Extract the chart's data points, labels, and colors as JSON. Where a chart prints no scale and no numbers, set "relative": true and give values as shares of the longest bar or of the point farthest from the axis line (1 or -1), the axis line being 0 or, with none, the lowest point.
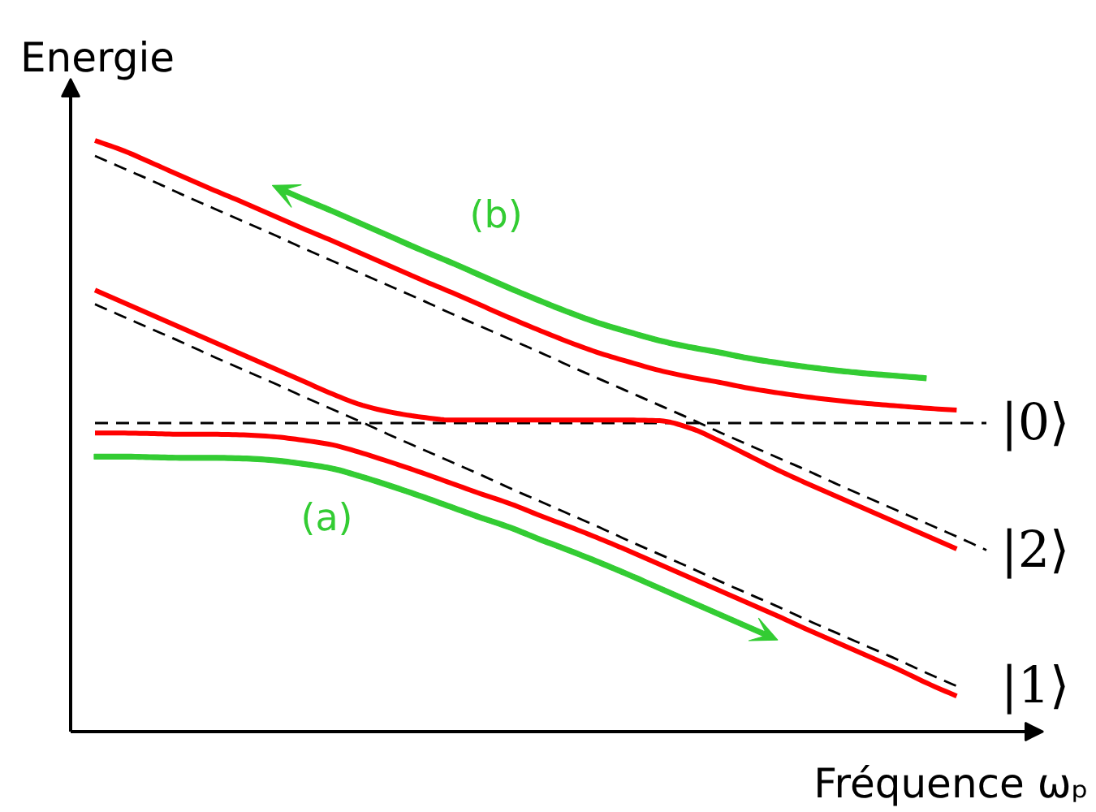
{
  "chart_data": {
    "type": "line",
    "relative": true,
    "xlabel": "Fréquence ωₚ",
    "ylabel": "Energie",
    "annotations": [
      "(b)",
      "(a)"
    ],
    "categories": [
      null,
      null,
      null,
      null,
      null,
      null,
      null,
      null,
      null,
      null,
      null,
      null,
      null,
      null,
      null,
      null,
      null,
      null,
      null,
      null,
      null,
      null,
      null,
      null,
      null,
      null,
      null,
      null,
      null,
      null,
      null
    ],
    "series": [
      {
        "name": "|0⟩",
        "color": "#000000",
        "line_style": "dashed",
        "values": [
          0.522,
          0.522,
          0.522,
          0.522,
          0.522,
          0.522,
          0.522,
          0.522,
          0.522,
          0.522,
          0.522,
          0.522,
          0.522,
          0.522,
          0.522,
          0.522,
          0.522,
          0.522,
          0.522,
          0.522,
          0.522,
          0.522,
          0.522,
          0.522,
          0.522,
          0.522,
          0.522,
          0.522,
          0.522,
          0.522,
          0.522
        ]
      },
      {
        "name": "|2⟩",
        "color": "#000000",
        "line_style": "dashed",
        "values": [
          0.974,
          0.952,
          0.93,
          0.907,
          0.885,
          0.863,
          0.841,
          0.818,
          0.796,
          0.774,
          0.752,
          0.73,
          0.707,
          0.685,
          0.663,
          0.641,
          0.618,
          0.596,
          0.574,
          0.552,
          0.53,
          0.507,
          0.485,
          0.463,
          0.441,
          0.418,
          0.396,
          0.374,
          0.352,
          0.33,
          0.307
        ]
      },
      {
        "name": "|1⟩",
        "color": "#000000",
        "line_style": "dashed",
        "values": [
          0.723,
          0.701,
          0.679,
          0.657,
          0.634,
          0.612,
          0.59,
          0.567,
          0.545,
          0.523,
          0.5,
          0.478,
          0.456,
          0.434,
          0.411,
          0.389,
          0.367,
          0.345,
          0.322,
          0.3,
          0.278,
          0.255,
          0.233,
          0.211,
          0.188,
          0.166,
          0.144,
          0.122,
          0.099,
          0.077,
          null
        ]
      },
      {
        "color": "#ff0000",
        "line_style": "solid",
        "values": [
          1.0,
          0.982,
          0.96,
          0.938,
          0.916,
          0.895,
          0.873,
          0.851,
          0.83,
          0.808,
          0.786,
          0.764,
          0.743,
          0.721,
          0.699,
          0.678,
          0.658,
          0.64,
          0.625,
          0.611,
          0.6,
          0.591,
          0.581,
          0.573,
          0.566,
          0.56,
          0.555,
          0.551,
          0.547,
          0.544,
          null
        ]
      },
      {
        "color": "#ff0000",
        "line_style": "solid",
        "values": [
          0.747,
          0.725,
          0.703,
          0.681,
          0.659,
          0.637,
          0.615,
          0.593,
          0.571,
          0.552,
          0.54,
          0.532,
          0.527,
          0.527,
          0.527,
          0.527,
          0.527,
          0.527,
          0.527,
          0.526,
          0.514,
          0.492,
          0.467,
          0.442,
          0.419,
          0.397,
          0.375,
          0.353,
          0.331,
          0.309,
          null
        ]
      },
      {
        "color": "#ff0000",
        "line_style": "solid",
        "values": [
          0.505,
          0.505,
          0.504,
          0.503,
          0.503,
          0.502,
          0.499,
          0.493,
          0.485,
          0.471,
          0.455,
          0.438,
          0.42,
          0.402,
          0.385,
          0.365,
          0.346,
          0.326,
          0.305,
          0.283,
          0.261,
          0.239,
          0.217,
          0.195,
          0.172,
          0.15,
          0.128,
          0.106,
          0.082,
          0.06,
          null
        ]
      }
    ]
  }
}
